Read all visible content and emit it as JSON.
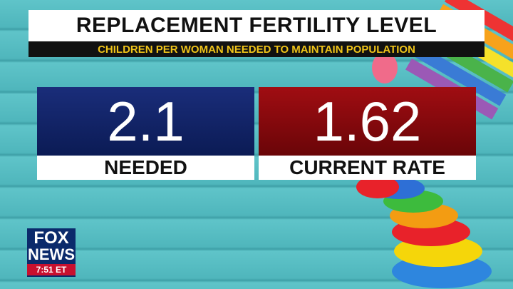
{
  "header": {
    "title": "REPLACEMENT FERTILITY LEVEL",
    "subtitle": "CHILDREN PER WOMAN NEEDED TO MAINTAIN POPULATION"
  },
  "cards": [
    {
      "value": 2.1,
      "label": "NEEDED"
    },
    {
      "value": 1.62,
      "label": "CURRENT RATE"
    }
  ],
  "logo": {
    "line1": "FOX",
    "line2": "NEWS",
    "time": "7:51 ET"
  }
}
